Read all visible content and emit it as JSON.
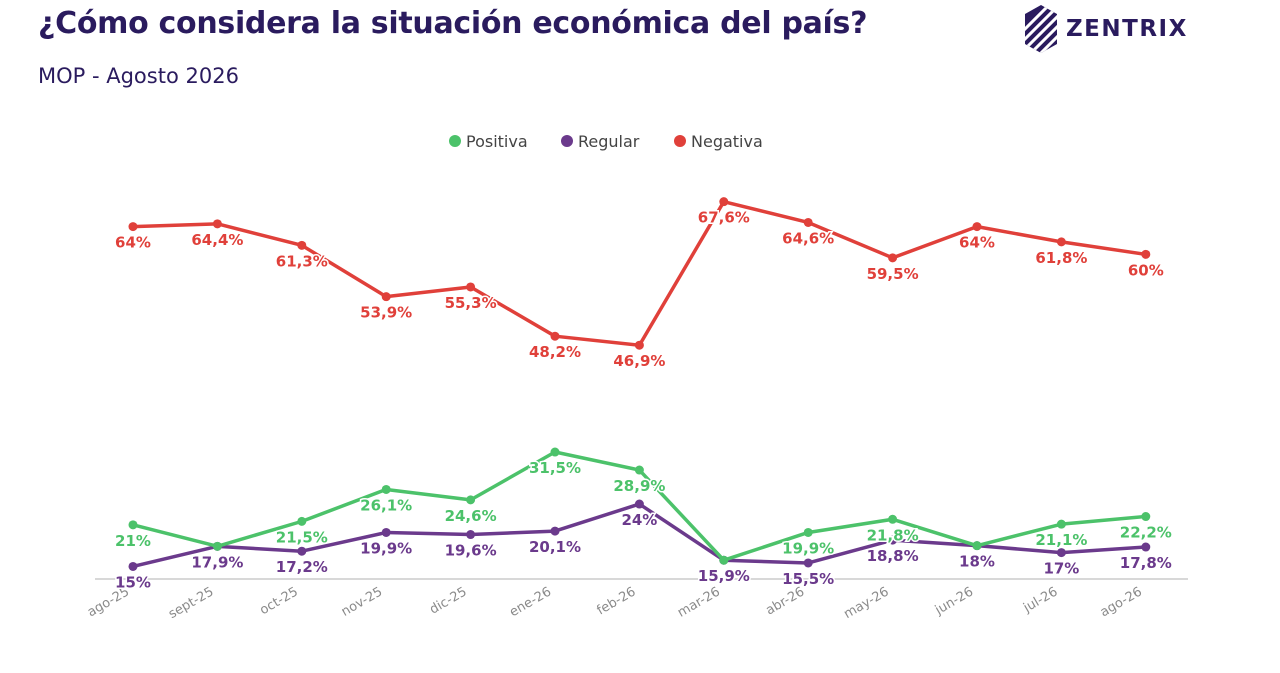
{
  "header": {
    "title": "¿Cómo considera la situación económica del país?",
    "subtitle": "MOP - Agosto 2026",
    "brand": "ZENTRIX"
  },
  "colors": {
    "title": "#2a1b5e",
    "positiva": "#4cc26a",
    "regular": "#6b3a8c",
    "negativa": "#e0403a",
    "axis": "#cccccc",
    "ticks": "#8a8a8a"
  },
  "chart_data": {
    "type": "line",
    "title": "¿Cómo considera la situación económica del país?",
    "subtitle": "MOP - Agosto 2026",
    "categories": [
      "ago-25",
      "sept-25",
      "oct-25",
      "nov-25",
      "dic-25",
      "ene-26",
      "feb-26",
      "mar-26",
      "abr-26",
      "may-26",
      "jun-26",
      "jul-26",
      "ago-26"
    ],
    "series": [
      {
        "name": "Positiva",
        "color": "#4cc26a",
        "values": [
          21,
          17.9,
          21.5,
          26.1,
          24.6,
          31.5,
          28.9,
          15.9,
          19.9,
          21.8,
          18,
          21.1,
          22.2
        ],
        "labels": [
          "21%",
          "",
          "21,5%",
          "26,1%",
          "24,6%",
          "31,5%",
          "28,9%",
          "",
          "19,9%",
          "21,8%",
          "",
          "21,1%",
          "22,2%"
        ]
      },
      {
        "name": "Regular",
        "color": "#6b3a8c",
        "values": [
          15,
          17.9,
          17.2,
          19.9,
          19.6,
          20.1,
          24,
          15.9,
          15.5,
          18.8,
          18,
          17,
          17.8
        ],
        "labels": [
          "15%",
          "17,9%",
          "17,2%",
          "19,9%",
          "19,6%",
          "20,1%",
          "24%",
          "15,9%",
          "15,5%",
          "18,8%",
          "18%",
          "17%",
          "17,8%"
        ]
      },
      {
        "name": "Negativa",
        "color": "#e0403a",
        "values": [
          64,
          64.4,
          61.3,
          53.9,
          55.3,
          48.2,
          46.9,
          67.6,
          64.6,
          59.5,
          64,
          61.8,
          60
        ],
        "labels": [
          "64%",
          "64,4%",
          "61,3%",
          "53,9%",
          "55,3%",
          "48,2%",
          "46,9%",
          "67,6%",
          "64,6%",
          "59,5%",
          "64%",
          "61,8%",
          "60%"
        ]
      }
    ],
    "xlabel": "",
    "ylabel": "",
    "ylim": [
      8,
      70
    ],
    "grid": false,
    "legend_position": "top-center"
  }
}
